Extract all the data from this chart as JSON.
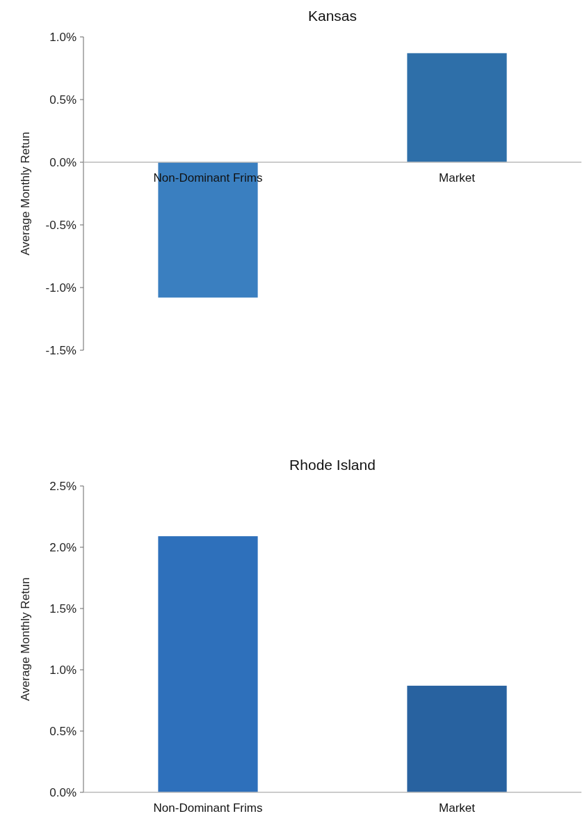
{
  "chart_data": [
    {
      "type": "bar",
      "title": "Kansas",
      "ylabel": "Average  Monthly Retun",
      "categories": [
        "Non-Dominant Frims",
        "Market"
      ],
      "values": [
        -1.08,
        0.87
      ],
      "colors": [
        "#3a7fc0",
        "#2e6fa9"
      ],
      "ylim": [
        -1.5,
        1.0
      ],
      "yticks": [
        {
          "value": -1.5,
          "label": "-1.5%"
        },
        {
          "value": -1.0,
          "label": "-1.0%"
        },
        {
          "value": -0.5,
          "label": "-0.5%"
        },
        {
          "value": 0,
          "label": "0.0%"
        },
        {
          "value": 0.5,
          "label": "0.5%"
        },
        {
          "value": 1.0,
          "label": "1.0%"
        }
      ],
      "grid": false
    },
    {
      "type": "bar",
      "title": "Rhode Island",
      "ylabel": "Average  Monthly Retun",
      "categories": [
        "Non-Dominant Frims",
        "Market"
      ],
      "values": [
        2.09,
        0.87
      ],
      "colors": [
        "#2e70bb",
        "#2862a0"
      ],
      "ylim": [
        0,
        2.5
      ],
      "yticks": [
        {
          "value": 0,
          "label": "0.0%"
        },
        {
          "value": 0.5,
          "label": "0.5%"
        },
        {
          "value": 1.0,
          "label": "1.0%"
        },
        {
          "value": 1.5,
          "label": "1.5%"
        },
        {
          "value": 2.0,
          "label": "2.0%"
        },
        {
          "value": 2.5,
          "label": "2.5%"
        }
      ],
      "grid": false
    }
  ]
}
